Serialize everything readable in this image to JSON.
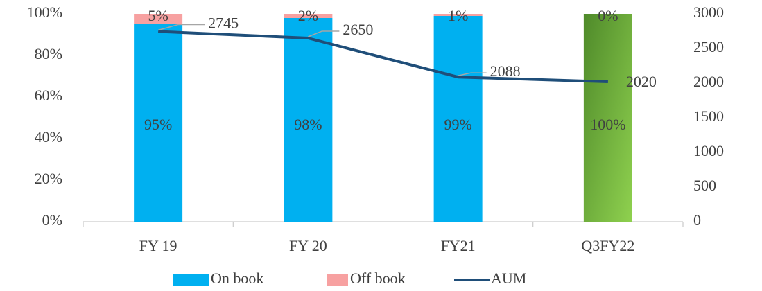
{
  "chart_data": {
    "type": "bar_line",
    "categories": [
      "FY 19",
      "FY 20",
      "FY21",
      "Q3FY22"
    ],
    "series": [
      {
        "name": "On book",
        "color": "#00b0f0",
        "point_colors": [
          "#00b0f0",
          "#00b0f0",
          "#00b0f0",
          [
            "#4f8a2a",
            "#8fd14f"
          ]
        ],
        "values": [
          95,
          98,
          99,
          100
        ],
        "value_labels": [
          "95%",
          "98%",
          "99%",
          "100%"
        ]
      },
      {
        "name": "Off book",
        "color": "#f7a1a1",
        "values": [
          5,
          2,
          1,
          0
        ],
        "value_labels": [
          "5%",
          "2%",
          "1%",
          "0%"
        ]
      },
      {
        "name": "AUM",
        "color": "#1f4e79",
        "axis": "y2",
        "values": [
          2745,
          2650,
          2088,
          2020
        ]
      }
    ],
    "ylim": [
      0,
      100
    ],
    "yticks": [
      {
        "value": 0,
        "label": "0%"
      },
      {
        "value": 20,
        "label": "20%"
      },
      {
        "value": 40,
        "label": "40%"
      },
      {
        "value": 60,
        "label": "60%"
      },
      {
        "value": 80,
        "label": "80%"
      },
      {
        "value": 100,
        "label": "100%"
      }
    ],
    "y2lim": [
      0,
      3000
    ],
    "y2ticks": [
      0,
      500,
      1000,
      1500,
      2000,
      2500,
      3000
    ],
    "legend": "bottom"
  }
}
